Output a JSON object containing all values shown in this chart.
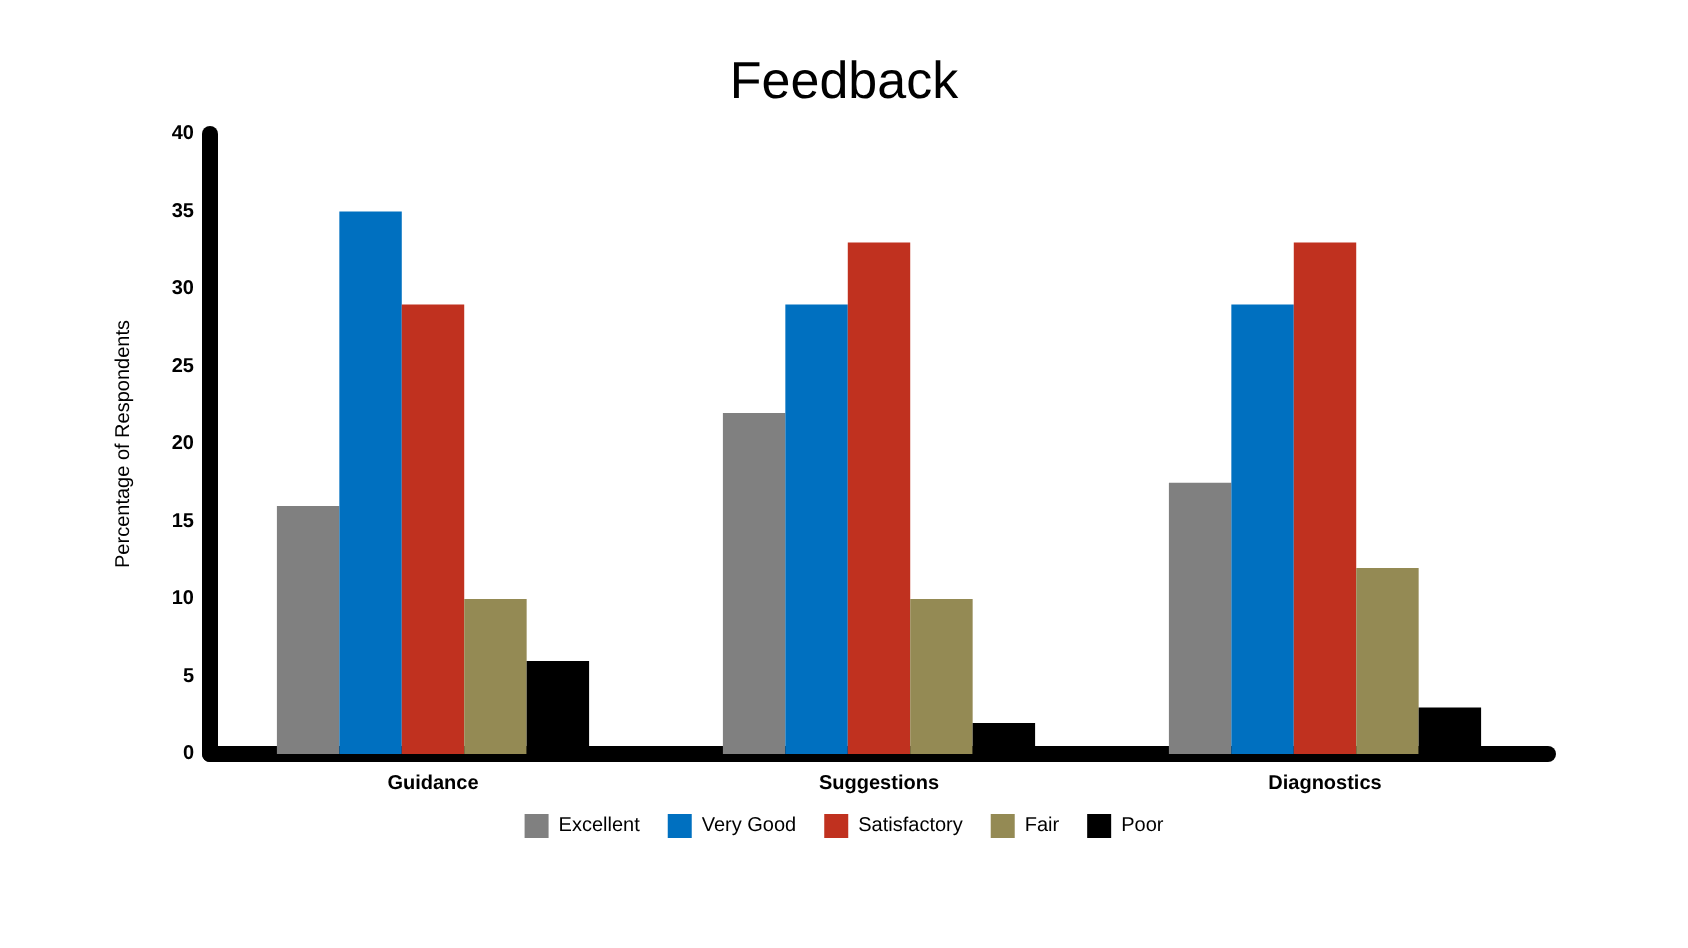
{
  "chart_data": {
    "type": "bar",
    "title": "Feedback",
    "ylabel": "Percentage of Respondents",
    "categories": [
      "Guidance",
      "Suggestions",
      "Diagnostics"
    ],
    "series": [
      {
        "name": "Excellent",
        "color": "#808080",
        "values": [
          16,
          22,
          17.5
        ]
      },
      {
        "name": "Very Good",
        "color": "#0070c0",
        "values": [
          35,
          29,
          29
        ]
      },
      {
        "name": "Satisfactory",
        "color": "#c0311f",
        "values": [
          29,
          33,
          33
        ]
      },
      {
        "name": "Fair",
        "color": "#948a54",
        "values": [
          10,
          10,
          12
        ]
      },
      {
        "name": "Poor",
        "color": "#000000",
        "values": [
          6,
          2,
          3
        ]
      }
    ],
    "ylim": [
      0,
      40
    ],
    "yticks": [
      0,
      5,
      10,
      15,
      20,
      25,
      30,
      35,
      40
    ],
    "grid": false,
    "legend": "bottom"
  }
}
